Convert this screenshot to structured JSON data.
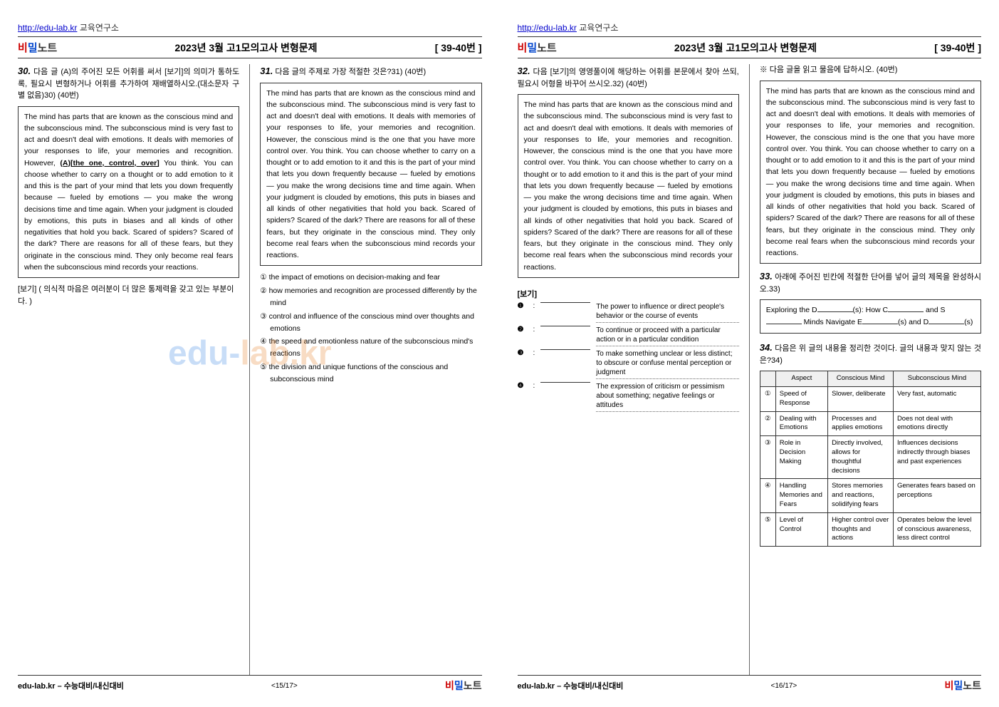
{
  "site": {
    "url": "http://edu-lab.kr",
    "name": "교육연구소"
  },
  "logo": {
    "p1": "비",
    "p2": "밀",
    "p3": "노트"
  },
  "header": {
    "title": "2023년 3월 고1모의고사 변형문제",
    "range": "[ 39-40번 ]"
  },
  "watermark": {
    "p1": "edu-",
    "p2": "lab.kr"
  },
  "footer": {
    "left": "edu-lab.kr – 수능대비/내신대비",
    "page_left": "<15/17>",
    "page_right": "<16/17>"
  },
  "q30": {
    "num": "30.",
    "head": "다음 글 (A)의 주어진 모든 어휘를 써서 [보기]의 의미가 통하도록, 필요시 변형하거나 어휘를 추가하여 재배열하시오.(대소문자 구별 없음)30) (40번)",
    "passage_pre": "The mind has parts that are known as the conscious mind and the subconscious mind. The subconscious mind is very fast to act and doesn't deal with emotions. It deals with memories of your responses to life, your memories and recognition. However, ",
    "passage_u": "(A)[the one, control, over]",
    "passage_post": " You think. You can choose whether to carry on a thought or to add emotion to it and this is the part of your mind that lets you down frequently because — fueled by emotions — you make the wrong decisions time and time again. When your judgment is clouded by emotions, this puts in biases and all kinds of other negativities that hold you back. Scared of spiders? Scared of the dark? There are reasons for all of these fears, but they originate in the conscious mind. They only become real fears when the subconscious mind records your reactions.",
    "bogi": "[보기] ( 의식적 마음은 여러분이 더 많은 통제력을 갖고 있는 부분이다. )"
  },
  "q31": {
    "num": "31.",
    "head": "다음 글의 주제로 가장 적절한 것은?31)  (40번)",
    "passage": "The mind has parts that are known as the conscious mind and the subconscious mind. The subconscious mind is very fast to act and doesn't deal with emotions. It deals with memories of your responses to life, your memories and recognition. However, the conscious mind is the one that you have more control over. You think. You can choose whether to carry on a thought or to add emotion to it and this is the part of your mind that lets you down frequently because — fueled by emotions — you make the wrong decisions time and time again. When your judgment is clouded by emotions, this puts in biases and all kinds of other negativities that hold you back. Scared of spiders? Scared of the dark? There are reasons for all of these fears, but they originate in the conscious mind. They only become real fears when the subconscious mind records your reactions.",
    "choices": [
      "① the impact of emotions on decision-making and fear",
      "② how memories and recognition are processed differently by the mind",
      "③ control and influence of the conscious mind over thoughts and emotions",
      "④ the speed and emotionless nature of the subconscious mind's reactions",
      "⑤ the division and unique functions of the conscious and subconscious mind"
    ]
  },
  "q32": {
    "num": "32.",
    "head": "다음 [보기]의 영영풀이에 해당하는 어휘를 본문에서 찾아 쓰되, 필요시 어형을 바꾸어 쓰시오.32) (40번)",
    "passage": "The mind has parts that are known as the conscious mind and the subconscious mind. The subconscious mind is very fast to act and doesn't deal with emotions. It deals with memories of your responses to life, your memories and recognition. However, the conscious mind is the one that you have more control over. You think. You can choose whether to carry on a thought or to add emotion to it and this is the part of your mind that lets you down frequently because — fueled by emotions — you make the wrong decisions time and time again. When your judgment is clouded by emotions, this puts in biases and all kinds of other negativities that hold you back. Scared of spiders? Scared of the dark? There are reasons for all of these fears, but they originate in the conscious mind. They only become real fears when the subconscious mind records your reactions.",
    "bogi_label": "[보기]",
    "items": [
      {
        "n": "❶",
        "def": "The power to influence or direct people's behavior or the course of events"
      },
      {
        "n": "❷",
        "def": "To continue or proceed with a particular action or in a particular condition"
      },
      {
        "n": "❸",
        "def": "To make something unclear or less distinct; to obscure or confuse mental perception or judgment"
      },
      {
        "n": "❹",
        "def": "The expression of criticism or pessimism about something; negative feelings or attitudes"
      }
    ]
  },
  "qx": {
    "head": "※ 다음 글을 읽고 물음에 답하시오. (40번)",
    "passage": "The mind has parts that are known as the conscious mind and the subconscious mind. The subconscious mind is very fast to act and doesn't deal with emotions. It deals with memories of your responses to life, your memories and recognition. However, the conscious mind is the one that you have more control over. You think. You can choose whether to carry on a thought or to add emotion to it and this is the part of your mind that lets you down frequently because — fueled by emotions — you make the wrong decisions time and time again. When your judgment is clouded by emotions, this puts in biases and all kinds of other negativities that hold you back. Scared of spiders? Scared of the dark? There are reasons for all of these fears, but they originate in the conscious mind. They only become real fears when the subconscious mind records your reactions."
  },
  "q33": {
    "num": "33.",
    "head": "아래에 주어진 빈칸에 적절한 단어를 넣어 글의 제목을 완성하시오.33)",
    "fill": {
      "t1": "Exploring the D",
      "t2": "(s): How C",
      "t3": " and S",
      "t4": " Minds Navigate E",
      "t5": "(s) and D",
      "t6": "(s)"
    }
  },
  "q34": {
    "num": "34.",
    "head": "다음은 위 글의 내용을 정리한 것이다. 글의 내용과 맞지 않는 것은?34)",
    "table": {
      "headers": [
        "",
        "Aspect",
        "Conscious Mind",
        "Subconscious Mind"
      ],
      "rows": [
        [
          "①",
          "Speed of Response",
          "Slower, deliberate",
          "Very fast, automatic"
        ],
        [
          "②",
          "Dealing with Emotions",
          "Processes and applies emotions",
          "Does not deal with emotions directly"
        ],
        [
          "③",
          "Role in Decision Making",
          "Directly involved, allows for thoughtful decisions",
          "Influences decisions indirectly through biases and past experiences"
        ],
        [
          "④",
          "Handling Memories and Fears",
          "Stores memories and reactions, solidifying fears",
          "Generates fears based on perceptions"
        ],
        [
          "⑤",
          "Level of Control",
          "Higher control over thoughts and actions",
          "Operates below the level of conscious awareness, less direct control"
        ]
      ]
    }
  }
}
